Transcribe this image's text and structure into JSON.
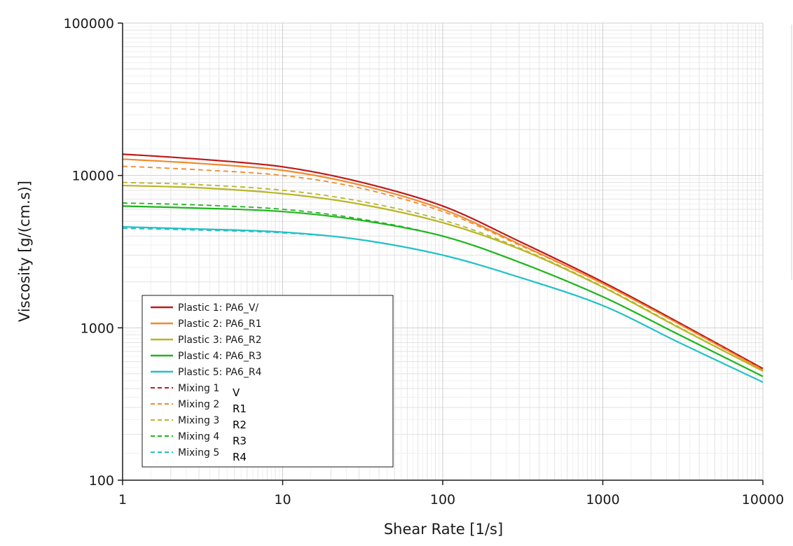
{
  "chart_data": {
    "type": "line",
    "title": "",
    "xlabel": "Shear Rate [1/s]",
    "ylabel": "Viscosity [g/(cm.s)]",
    "xscale": "log",
    "yscale": "log",
    "xlim": [
      1,
      10000
    ],
    "ylim": [
      100,
      100000
    ],
    "xticks": [
      "1",
      "10",
      "100",
      "1000",
      "10000"
    ],
    "yticks": [
      "100",
      "1000",
      "10000",
      "100000"
    ],
    "grid": true,
    "legend_position": "lower-left",
    "x": [
      1,
      3,
      10,
      30,
      100,
      300,
      1000,
      3000,
      10000
    ],
    "series": [
      {
        "name": "Plastic 1: PA6_V/",
        "style": "solid",
        "color": "#c0191b",
        "values": [
          13800,
          12800,
          11400,
          9100,
          6300,
          3700,
          2000,
          1080,
          540
        ]
      },
      {
        "name": "Plastic 2: PA6_R1",
        "style": "solid",
        "color": "#f08a2c",
        "values": [
          12800,
          12000,
          10800,
          8700,
          6000,
          3550,
          1950,
          1060,
          530
        ]
      },
      {
        "name": "Plastic 3: PA6_R2",
        "style": "solid",
        "color": "#b8b628",
        "values": [
          8600,
          8300,
          7600,
          6500,
          4900,
          3300,
          1850,
          1000,
          520
        ]
      },
      {
        "name": "Plastic 4: PA6_R3",
        "style": "solid",
        "color": "#1fb51c",
        "values": [
          6300,
          6100,
          5800,
          5100,
          4000,
          2700,
          1600,
          900,
          480
        ]
      },
      {
        "name": "Plastic 5: PA6_R4",
        "style": "solid",
        "color": "#22c1c6",
        "values": [
          4600,
          4450,
          4250,
          3800,
          3000,
          2150,
          1400,
          800,
          440
        ]
      },
      {
        "name": "Mixing 1",
        "style": "dashed",
        "color": "#c0191b",
        "values": [
          13800,
          12800,
          11400,
          9100,
          6300,
          3700,
          2000,
          1080,
          540
        ]
      },
      {
        "name": "Mixing 2",
        "style": "dashed",
        "color": "#f08a2c",
        "values": [
          11500,
          10900,
          10000,
          8300,
          5800,
          3500,
          1950,
          1060,
          530
        ]
      },
      {
        "name": "Mixing 3",
        "style": "dashed",
        "color": "#b8b628",
        "values": [
          9000,
          8700,
          8000,
          6800,
          5100,
          3350,
          1870,
          1010,
          520
        ]
      },
      {
        "name": "Mixing 4",
        "style": "dashed",
        "color": "#1fb51c",
        "values": [
          6600,
          6400,
          6000,
          5200,
          4000,
          2700,
          1600,
          900,
          480
        ]
      },
      {
        "name": "Mixing 5",
        "style": "dashed",
        "color": "#22c1c6",
        "values": [
          4500,
          4380,
          4200,
          3800,
          3000,
          2150,
          1400,
          800,
          440
        ]
      }
    ],
    "legend_suffixes": [
      "V",
      "R1",
      "R2",
      "R3",
      "R4"
    ]
  }
}
